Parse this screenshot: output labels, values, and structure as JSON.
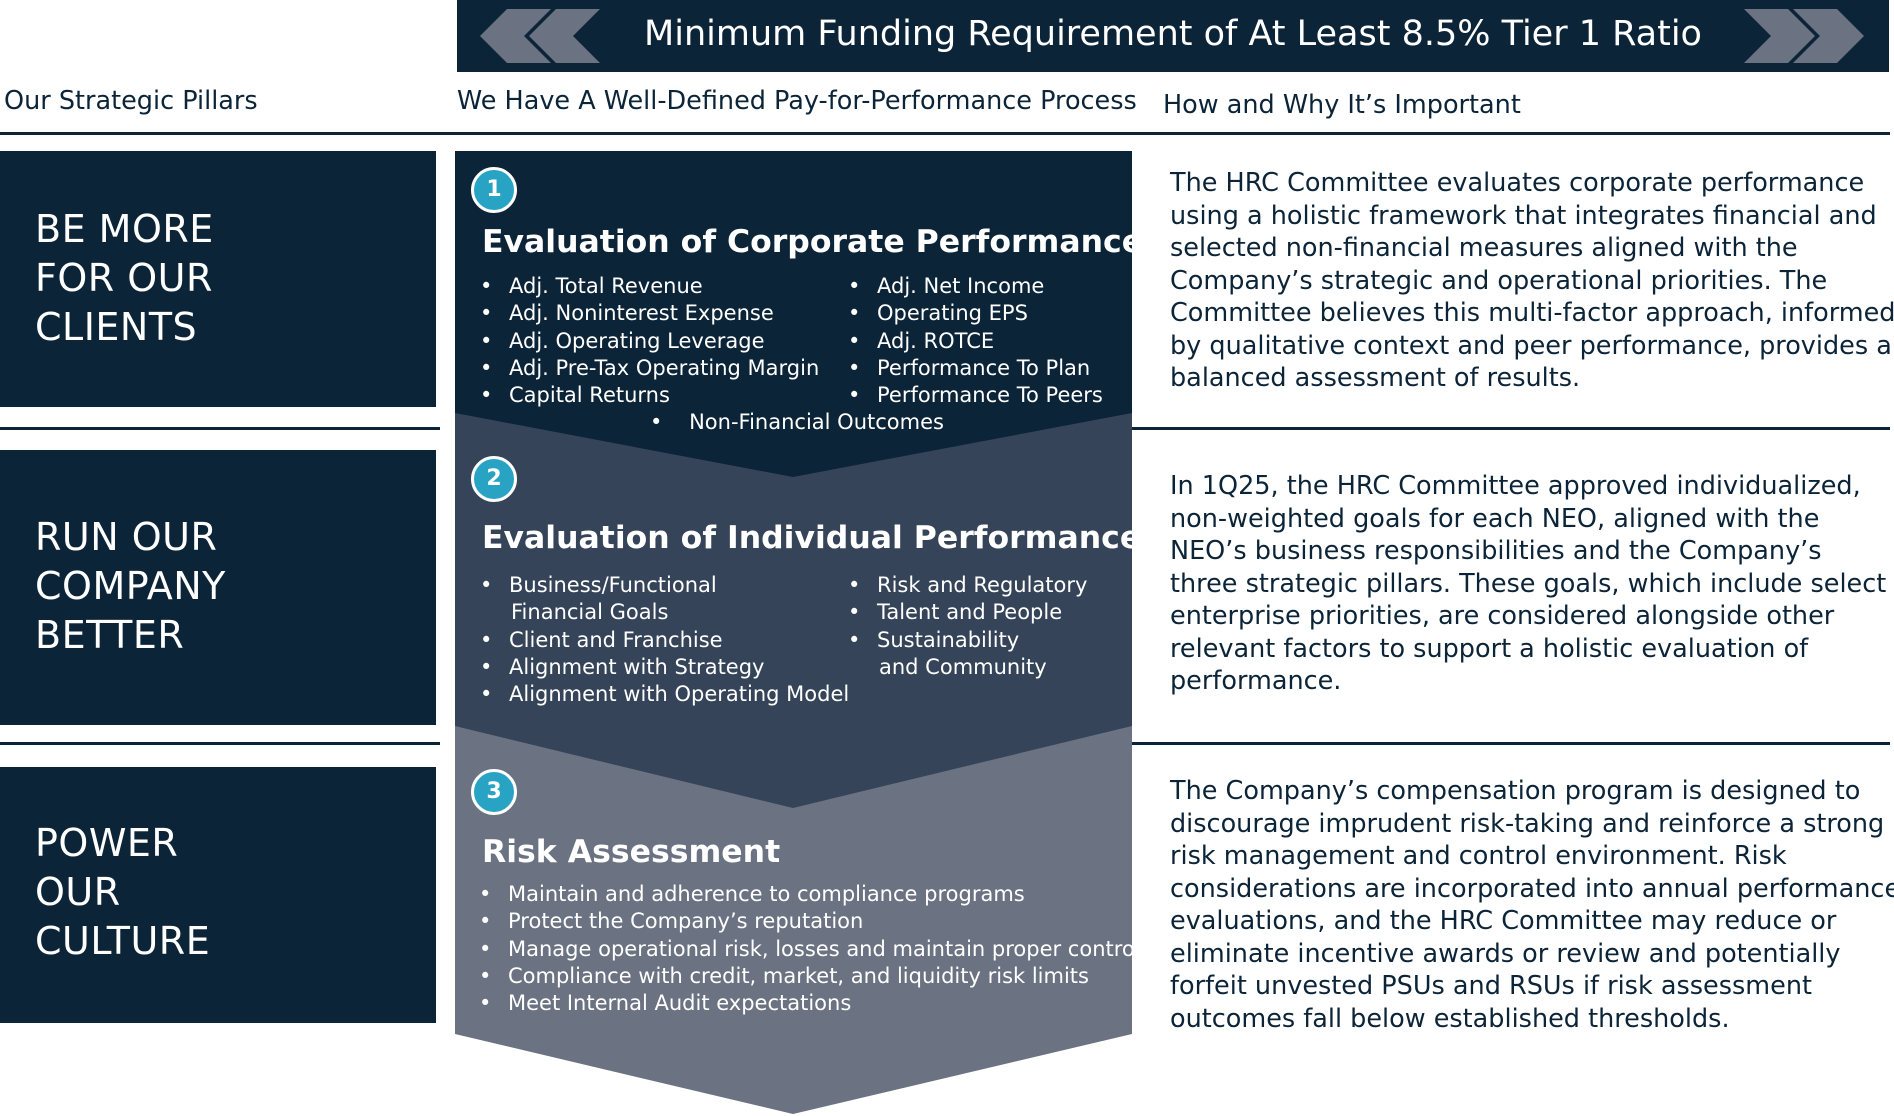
{
  "banner": {
    "title": "Minimum Funding Requirement of At Least 8.5% Tier 1 Ratio",
    "left_chevron_icon": "double-chevron-left-icon",
    "right_chevron_icon": "double-chevron-right-icon",
    "chevron_color": "#6b7282"
  },
  "columns": {
    "pillars": "Our Strategic Pillars",
    "process": "We Have A Well-Defined Pay-for-Performance Process",
    "importance": "How and Why It’s Important"
  },
  "colors": {
    "navy": "#0c2438",
    "step1": "#0c2438",
    "step2": "#354459",
    "step3": "#6b7282",
    "badge": "#29a3c4"
  },
  "pillars": [
    {
      "lines": [
        "BE MORE",
        "FOR OUR",
        "CLIENTS"
      ]
    },
    {
      "lines": [
        "RUN OUR",
        "COMPANY",
        "BETTER"
      ]
    },
    {
      "lines": [
        "POWER",
        "OUR",
        "CULTURE"
      ]
    }
  ],
  "steps": [
    {
      "number": "1",
      "title": "Evaluation of Corporate Performance",
      "bullets_left": [
        "Adj. Total Revenue",
        "Adj. Noninterest Expense",
        "Adj. Operating Leverage",
        "Adj. Pre-Tax Operating Margin",
        "Capital Returns"
      ],
      "bullets_right": [
        "Adj.  Net Income",
        "Operating EPS",
        "Adj. ROTCE",
        "Performance To Plan",
        "Performance To Peers"
      ],
      "bullet_center": "Non-Financial Outcomes"
    },
    {
      "number": "2",
      "title": "Evaluation of  Individual Performance",
      "bullets_left": [
        [
          "Business/Functional",
          "Financial Goals"
        ],
        [
          "Client and Franchise"
        ],
        [
          "Alignment with Strategy"
        ],
        [
          "Alignment with Operating Model"
        ]
      ],
      "bullets_right": [
        [
          "Risk and Regulatory"
        ],
        [
          "Talent and People"
        ],
        [
          "Sustainability",
          "and Community"
        ]
      ]
    },
    {
      "number": "3",
      "title": "Risk Assessment",
      "bullets": [
        "Maintain and adherence to compliance programs",
        "Protect the Company’s reputation",
        "Manage operational risk, losses and maintain proper controls",
        "Compliance with credit, market, and liquidity risk limits",
        "Meet Internal Audit expectations"
      ]
    }
  ],
  "descriptions": [
    [
      "The HRC Committee evaluates corporate performance",
      "using a holistic framework that integrates financial and",
      "selected non-financial measures aligned with the",
      "Company’s strategic and operational priorities. The",
      "Committee believes this multi-factor approach, informed",
      "by qualitative context and peer performance, provides a",
      "balanced assessment of results."
    ],
    [
      "In 1Q25, the HRC Committee approved individualized,",
      "non-weighted goals for each NEO, aligned with the",
      "NEO’s business responsibilities and the Company’s",
      "three strategic pillars. These goals, which include select",
      "enterprise priorities, are considered alongside other",
      "relevant factors to support a holistic evaluation of",
      "performance."
    ],
    [
      "The Company’s compensation program is designed to",
      "discourage imprudent risk-taking and reinforce a strong",
      "risk management and control environment. Risk",
      "considerations are incorporated into annual performance",
      "evaluations, and the HRC Committee may reduce or",
      "eliminate incentive awards or review and potentially",
      "forfeit unvested PSUs and RSUs if risk assessment",
      "outcomes fall below established thresholds."
    ]
  ]
}
